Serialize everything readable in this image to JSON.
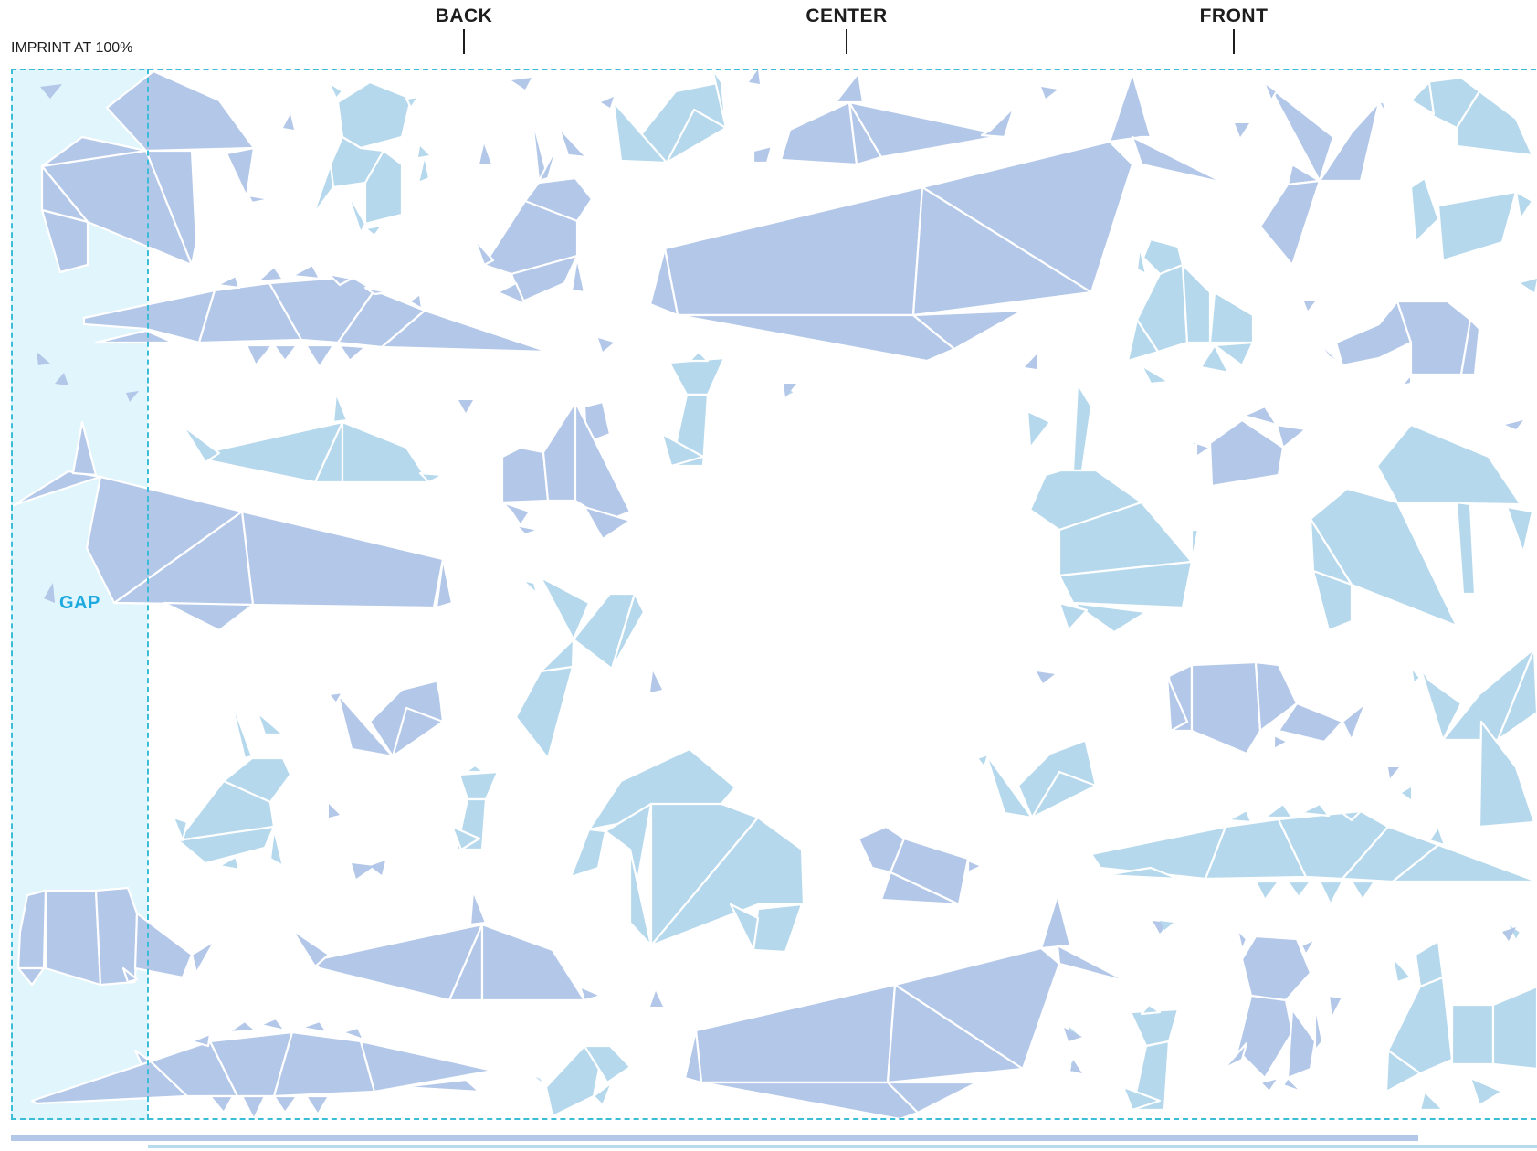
{
  "markers": {
    "back": "BACK",
    "center": "CENTER",
    "front": "FRONT"
  },
  "imprint_label": "IMPRINT AT 100%",
  "gap_label": "GAP",
  "colors": {
    "periwinkle": "#b3c7e8",
    "sky": "#b5d8ec",
    "gap_fill": "#e1f5fc",
    "guide": "#3bbdd8",
    "gap_text": "#1ea9df",
    "fold_line": "#ffffff"
  },
  "pattern_elements": [
    "origami-bear",
    "origami-cat",
    "origami-rabbit",
    "origami-swan",
    "origami-dolphin",
    "origami-whale",
    "origami-crocodile",
    "origami-bird",
    "origami-dog",
    "origami-rhino",
    "origami-elephant",
    "origami-fox",
    "origami-turtle",
    "origami-squirrel"
  ]
}
